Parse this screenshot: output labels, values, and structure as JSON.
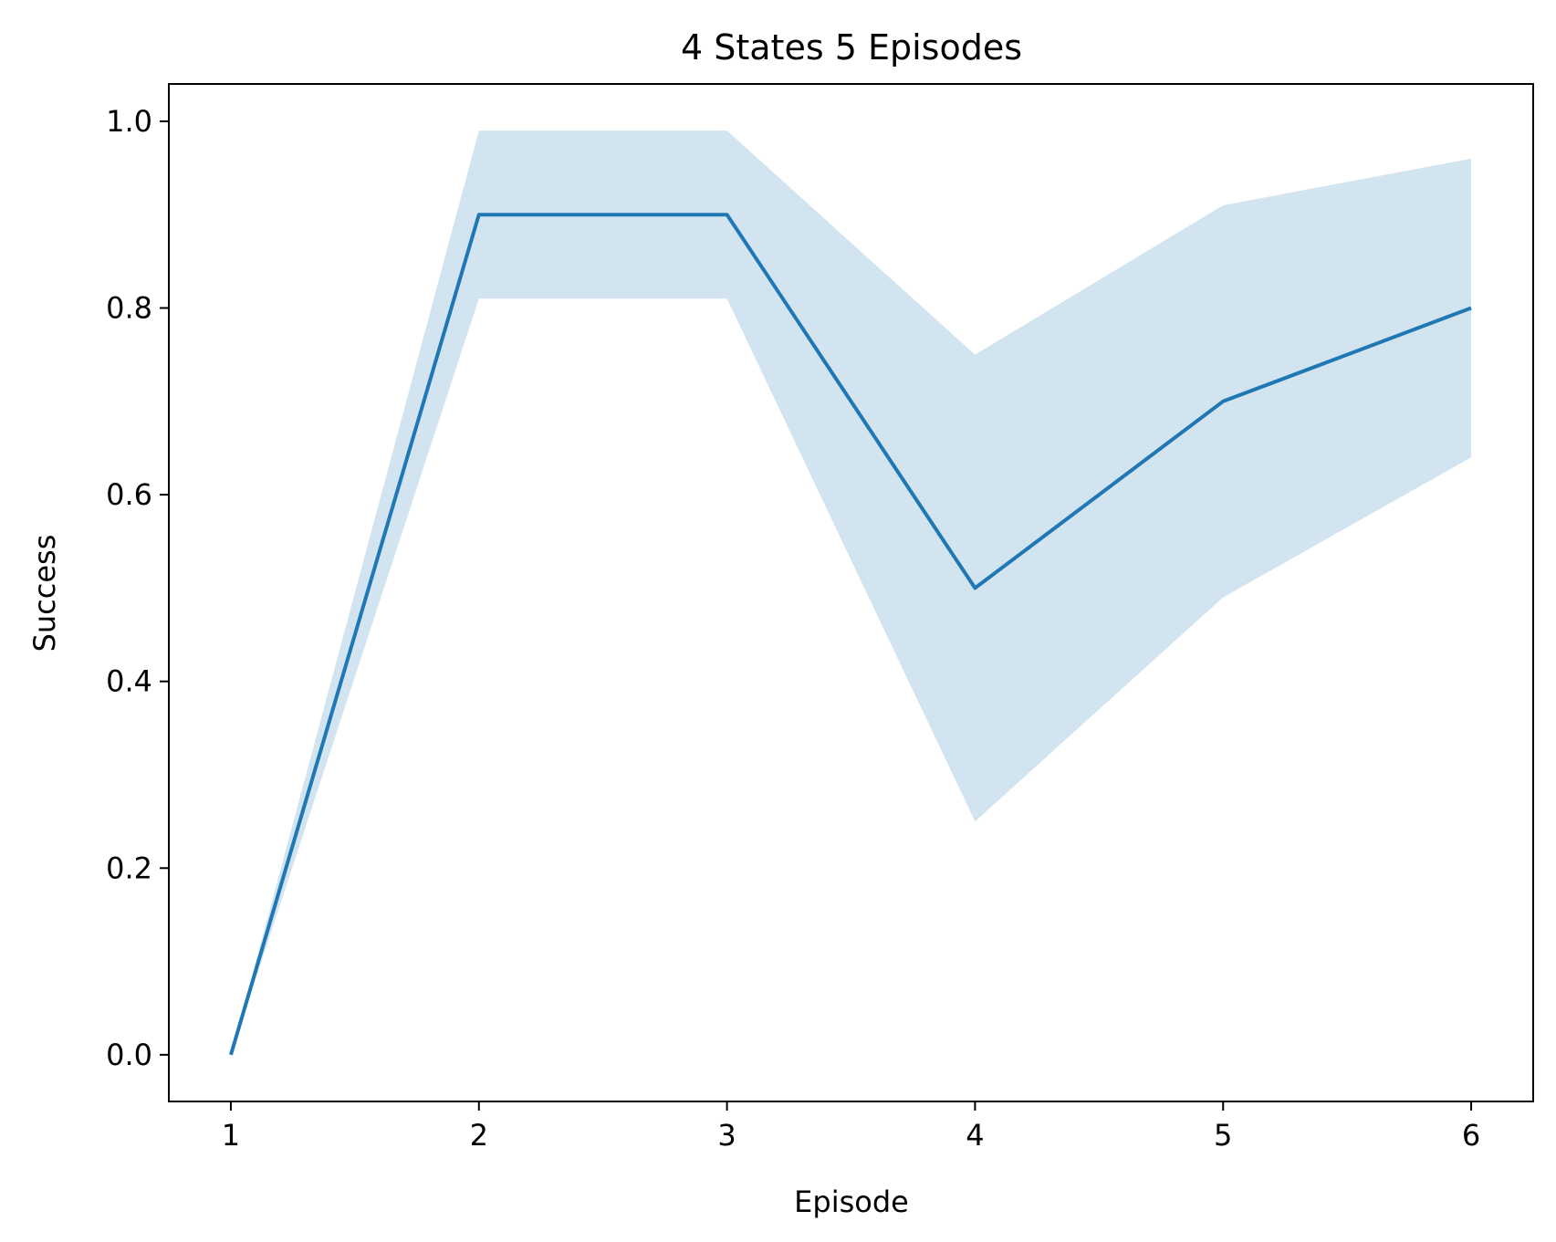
{
  "chart_data": {
    "type": "line",
    "title": "4 States 5 Episodes",
    "xlabel": "Episode",
    "ylabel": "Success",
    "xlim": [
      0.75,
      6.25
    ],
    "ylim": [
      -0.05,
      1.04
    ],
    "x_ticks": [
      1,
      2,
      3,
      4,
      5,
      6
    ],
    "y_ticks": [
      0.0,
      0.2,
      0.4,
      0.6,
      0.8,
      1.0
    ],
    "x_tick_labels": [
      "1",
      "2",
      "3",
      "4",
      "5",
      "6"
    ],
    "y_tick_labels": [
      "0.0",
      "0.2",
      "0.4",
      "0.6",
      "0.8",
      "1.0"
    ],
    "grid": false,
    "series": [
      {
        "x": [
          1,
          2,
          3,
          4,
          5,
          6
        ],
        "y": [
          0.0,
          0.9,
          0.9,
          0.5,
          0.7,
          0.8
        ],
        "ci_lower": [
          0.0,
          0.81,
          0.81,
          0.25,
          0.49,
          0.64
        ],
        "ci_upper": [
          0.0,
          0.99,
          0.99,
          0.75,
          0.91,
          0.96
        ],
        "color": "#1f77b4",
        "band_color": "#1f77b4",
        "band_opacity": 0.2
      }
    ]
  }
}
